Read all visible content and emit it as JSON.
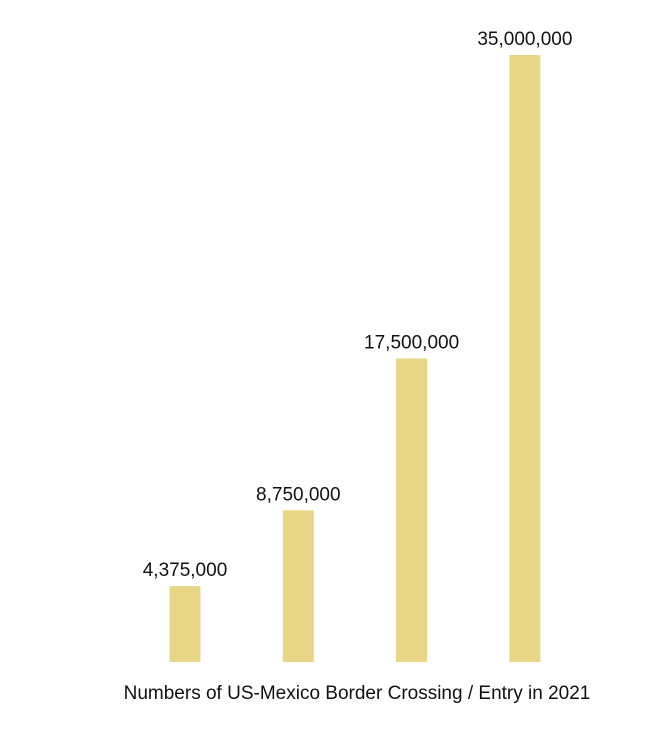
{
  "chart_data": {
    "type": "bar",
    "categories": [
      "",
      "",
      "",
      ""
    ],
    "values": [
      4375000,
      8750000,
      17500000,
      35000000
    ],
    "data_labels": [
      "4,375,000",
      "8,750,000",
      "17,500,000",
      "35,000,000"
    ],
    "title": "",
    "xlabel": "Numbers of US-Mexico Border Crossing / Entry in 2021",
    "ylabel": "",
    "ylim": [
      0,
      35000000
    ],
    "grid": false,
    "legend": "none",
    "bar_color": "#E8D586",
    "label_color": "#111111",
    "background": "#FFFFFF"
  }
}
